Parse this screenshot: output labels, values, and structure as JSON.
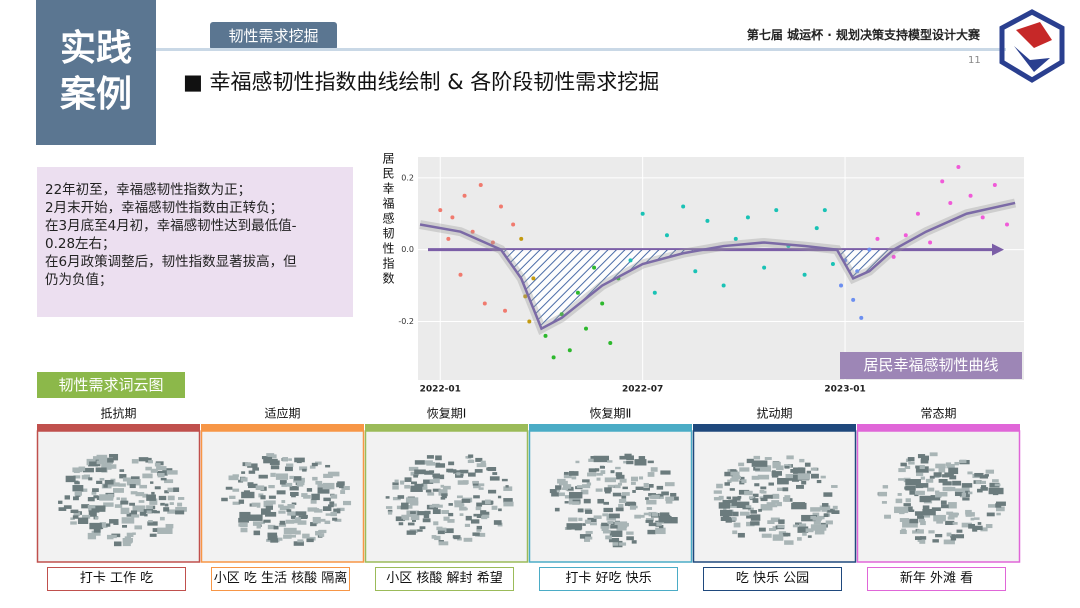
{
  "header": {
    "badge_line1": "实践",
    "badge_line2": "案例",
    "tag": "韧性需求挖掘",
    "contest": "第七届 城运杯 · 规划决策支持模型设计大赛",
    "page": "11",
    "title": "■ 幸福感韧性指数曲线绘制 & 各阶段韧性需求挖掘"
  },
  "summary": [
    "22年初至，幸福感韧性指数为正；",
    "2月末开始，幸福感韧性指数由正转负；",
    "在3月底至4月初，幸福感韧性达到最低值-",
    "0.28左右；",
    "在6月政策调整后，韧性指数显著拔高，但",
    "仍为负值；"
  ],
  "chart_data": {
    "type": "scatter",
    "ylabel": "居民幸福感韧性指数",
    "annotation": "居民幸福感韧性曲线",
    "xlim": [
      2021.945,
      2023.442
    ],
    "ylim": [
      -0.363,
      0.258
    ],
    "xticks": [
      {
        "value": 2022.0,
        "label": "2022-01"
      },
      {
        "value": 2022.5,
        "label": "2022-07"
      },
      {
        "value": 2023.0,
        "label": "2023-01"
      }
    ],
    "yticks": [
      -0.2,
      {
        "value": 0,
        "label": "0.0"
      },
      0.2
    ],
    "grid": true,
    "series": [
      {
        "color": "#f07a6e",
        "x": [
          2022.0,
          2022.02,
          2022.03,
          2022.05,
          2022.06,
          2022.08,
          2022.1,
          2022.11,
          2022.13,
          2022.15,
          2022.16,
          2022.18
        ],
        "values": [
          0.11,
          0.03,
          0.09,
          -0.07,
          0.15,
          0.05,
          0.18,
          -0.15,
          0.02,
          0.12,
          -0.17,
          0.07
        ]
      },
      {
        "color": "#c39a10",
        "x": [
          2022.2,
          2022.21,
          2022.22,
          2022.23
        ],
        "values": [
          0.03,
          -0.13,
          -0.2,
          -0.08
        ]
      },
      {
        "color": "#2db82d",
        "x": [
          2022.26,
          2022.28,
          2022.3,
          2022.32,
          2022.34,
          2022.36,
          2022.38,
          2022.4,
          2022.42,
          2022.44
        ],
        "values": [
          -0.24,
          -0.3,
          -0.18,
          -0.28,
          -0.12,
          -0.22,
          -0.05,
          -0.15,
          -0.26,
          -0.08
        ]
      },
      {
        "color": "#19c2b5",
        "x": [
          2022.47,
          2022.5,
          2022.53,
          2022.56,
          2022.6,
          2022.63,
          2022.66,
          2022.7,
          2022.73,
          2022.76,
          2022.8,
          2022.83,
          2022.86,
          2022.9,
          2022.93,
          2022.95,
          2022.97
        ],
        "values": [
          -0.03,
          0.1,
          -0.12,
          0.04,
          0.12,
          -0.06,
          0.08,
          -0.1,
          0.03,
          0.09,
          -0.05,
          0.11,
          0.01,
          -0.07,
          0.06,
          0.11,
          -0.04
        ]
      },
      {
        "color": "#6c8ff0",
        "x": [
          2022.99,
          2023.0,
          2023.02,
          2023.03,
          2023.04,
          2023.06
        ],
        "values": [
          -0.1,
          -0.03,
          -0.14,
          -0.06,
          -0.19,
          0.0
        ]
      },
      {
        "color": "#f05ad8",
        "x": [
          2023.08,
          2023.12,
          2023.15,
          2023.18,
          2023.21,
          2023.24,
          2023.26,
          2023.28,
          2023.31,
          2023.34,
          2023.37,
          2023.4
        ],
        "values": [
          0.03,
          -0.02,
          0.04,
          0.1,
          0.02,
          0.19,
          0.13,
          0.23,
          0.15,
          0.09,
          0.18,
          0.07
        ]
      }
    ],
    "trend": {
      "color": "#7b6aa6",
      "x": [
        2021.95,
        2022.05,
        2022.15,
        2022.2,
        2022.25,
        2022.3,
        2022.4,
        2022.5,
        2022.6,
        2022.7,
        2022.8,
        2022.9,
        2022.98,
        2023.02,
        2023.06,
        2023.12,
        2023.2,
        2023.3,
        2023.42
      ],
      "values": [
        0.07,
        0.05,
        0.0,
        -0.08,
        -0.22,
        -0.19,
        -0.1,
        -0.04,
        -0.01,
        0.01,
        0.02,
        0.01,
        0.0,
        -0.08,
        -0.06,
        0.0,
        0.05,
        0.1,
        0.13
      ]
    }
  },
  "wordcloud": {
    "title": "韧性需求词云图",
    "phases": [
      {
        "name": "抵抗期",
        "keywords": "打卡 工作 吃",
        "color": "#c0504d"
      },
      {
        "name": "适应期",
        "keywords": "小区 吃 生活 核酸 隔离",
        "color": "#f79646"
      },
      {
        "name": "恢复期Ⅰ",
        "keywords": "小区 核酸 解封 希望",
        "color": "#9bbb59"
      },
      {
        "name": "恢复期Ⅱ",
        "keywords": "打卡 好吃 快乐",
        "color": "#4bacc6"
      },
      {
        "name": "扰动期",
        "keywords": "吃 快乐 公园",
        "color": "#1f497d"
      },
      {
        "name": "常态期",
        "keywords": "新年 外滩 看",
        "color": "#e066d8"
      }
    ]
  }
}
